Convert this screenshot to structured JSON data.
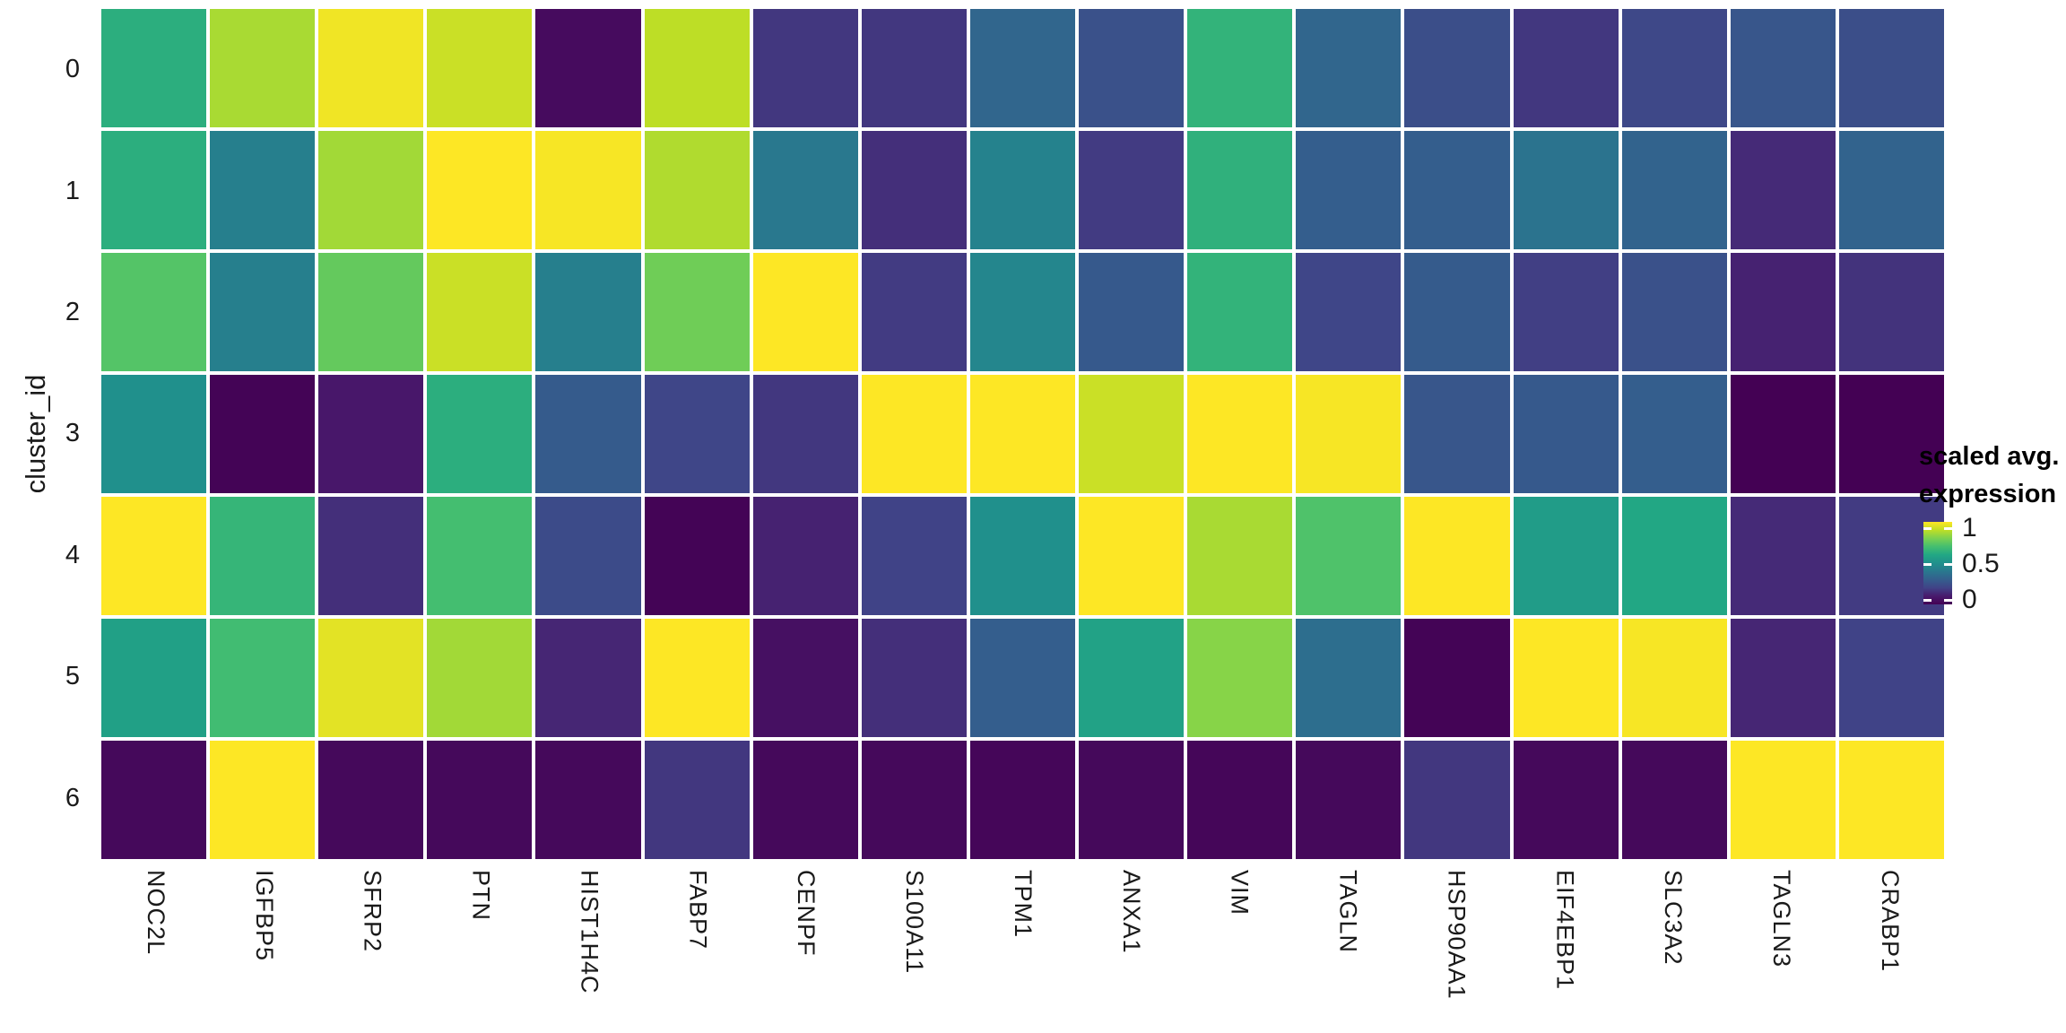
{
  "figure": {
    "background": "#ffffff",
    "y_axis_title": "cluster_id",
    "legend": {
      "title_line1": "scaled avg.",
      "title_line2": "expression",
      "tick_labels": [
        "1",
        "0.5",
        "0"
      ],
      "tick_values": [
        1,
        0.5,
        0
      ]
    },
    "grid_line_color": "#ffffff",
    "colormap_anchors": {
      "0.0": "#440154",
      "0.5": "#21918c",
      "1.0": "#fde725"
    }
  },
  "chart_data": {
    "type": "heatmap",
    "title": "",
    "xlabel": "",
    "ylabel": "cluster_id",
    "legend_title": "scaled avg. expression",
    "colormap": "viridis",
    "value_range": [
      0,
      1
    ],
    "legend_position": "right",
    "grid": false,
    "columns": [
      "NOC2L",
      "IGFBP5",
      "SFRP2",
      "PTN",
      "HIST1H4C",
      "FABP7",
      "CENPF",
      "S100A11",
      "TPM1",
      "ANXA1",
      "VIM",
      "TAGLN",
      "HSP90AA1",
      "EIF4EBP1",
      "SLC3A2",
      "TAGLN3",
      "CRABP1"
    ],
    "rows": [
      "0",
      "1",
      "2",
      "3",
      "4",
      "5",
      "6"
    ],
    "values": [
      [
        0.63,
        0.87,
        0.98,
        0.92,
        0.04,
        0.9,
        0.17,
        0.17,
        0.33,
        0.25,
        0.65,
        0.33,
        0.24,
        0.17,
        0.22,
        0.27,
        0.24
      ],
      [
        0.63,
        0.43,
        0.86,
        1.0,
        0.99,
        0.88,
        0.4,
        0.15,
        0.44,
        0.18,
        0.64,
        0.3,
        0.3,
        0.38,
        0.32,
        0.14,
        0.32
      ],
      [
        0.73,
        0.43,
        0.76,
        0.92,
        0.43,
        0.78,
        1.0,
        0.18,
        0.46,
        0.28,
        0.65,
        0.21,
        0.29,
        0.19,
        0.25,
        0.12,
        0.16
      ],
      [
        0.5,
        0.01,
        0.09,
        0.63,
        0.29,
        0.21,
        0.17,
        1.0,
        1.0,
        0.92,
        1.0,
        0.99,
        0.27,
        0.28,
        0.3,
        0.0,
        0.0
      ],
      [
        1.0,
        0.66,
        0.15,
        0.7,
        0.23,
        0.01,
        0.12,
        0.2,
        0.5,
        1.0,
        0.87,
        0.72,
        1.0,
        0.55,
        0.6,
        0.14,
        0.18
      ],
      [
        0.57,
        0.69,
        0.96,
        0.86,
        0.13,
        1.0,
        0.06,
        0.15,
        0.3,
        0.58,
        0.82,
        0.36,
        0.01,
        1.0,
        0.99,
        0.13,
        0.2
      ],
      [
        0.03,
        1.0,
        0.03,
        0.03,
        0.03,
        0.17,
        0.03,
        0.03,
        0.02,
        0.03,
        0.02,
        0.03,
        0.17,
        0.03,
        0.03,
        1.0,
        1.0
      ]
    ]
  }
}
